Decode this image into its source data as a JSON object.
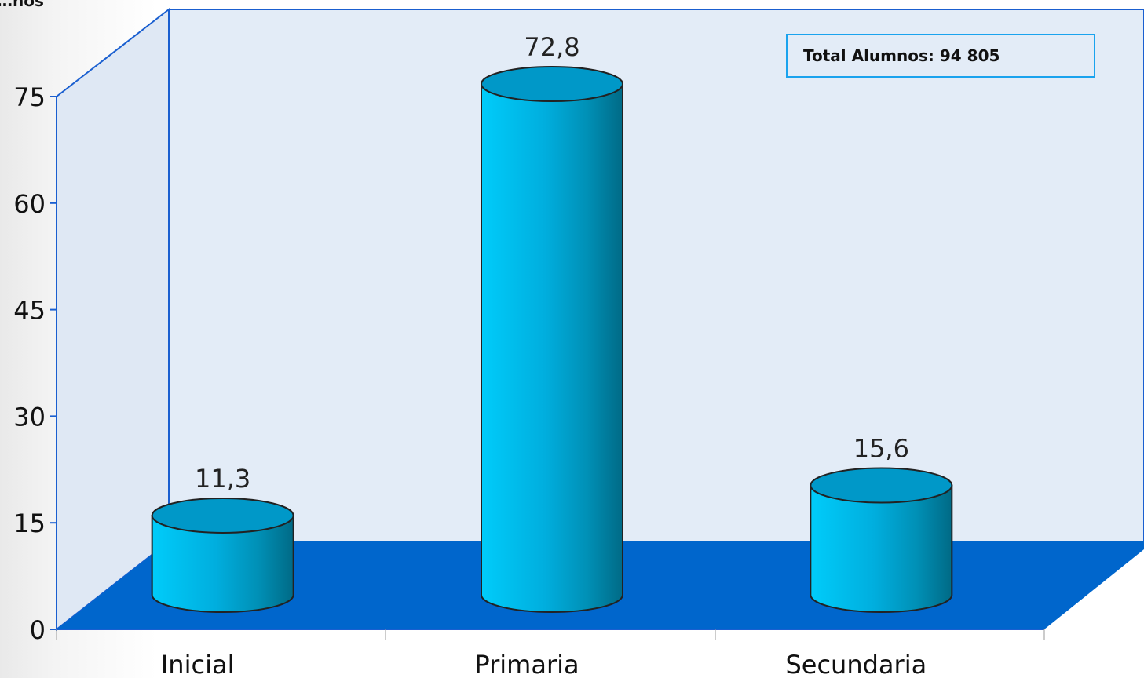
{
  "chart_data": {
    "type": "bar",
    "title": "",
    "ylabel": "…nos",
    "xlabel": "",
    "categories": [
      "Inicial",
      "Primaria",
      "Secundaria"
    ],
    "values": [
      11.3,
      72.8,
      15.6
    ],
    "value_labels": [
      "11,3",
      "72,8",
      "15,6"
    ],
    "ylim": [
      0,
      75
    ],
    "yticks": [
      "0",
      "15",
      "30",
      "45",
      "60",
      "75"
    ],
    "grid": false,
    "legend": "none",
    "annotation": "Total Alumnos: 94 805",
    "colors": {
      "bar": "#00c8f8",
      "bar_dark": "#007e9c",
      "wall": "#e3ecf7",
      "floor": "#0066cc",
      "axis": "#1a5fd0"
    }
  }
}
